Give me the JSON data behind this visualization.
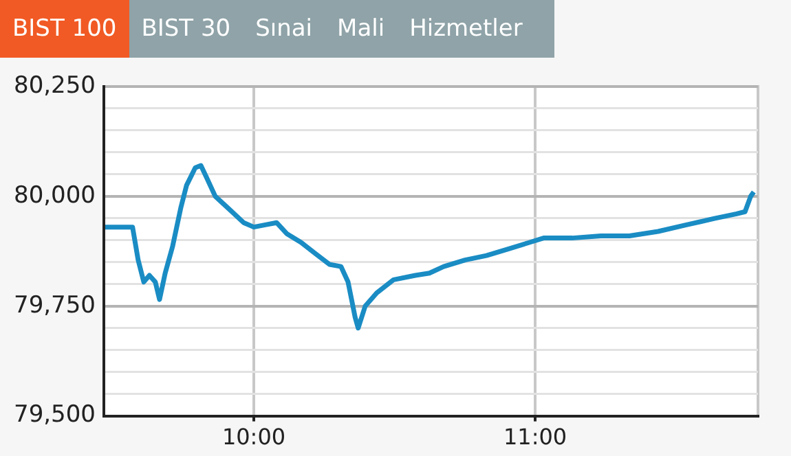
{
  "chart_data": {
    "type": "line",
    "title": "BIST 100",
    "annotations": [
      "BIST 30",
      "Sınai",
      "Mali",
      "Hizmetler"
    ],
    "x": [
      9.472,
      9.569,
      9.589,
      9.609,
      9.629,
      9.65,
      9.665,
      9.685,
      9.711,
      9.741,
      9.761,
      9.792,
      9.812,
      9.827,
      9.863,
      9.914,
      9.964,
      10.0,
      10.041,
      10.081,
      10.117,
      10.168,
      10.218,
      10.269,
      10.31,
      10.335,
      10.36,
      10.371,
      10.396,
      10.437,
      10.497,
      10.574,
      10.624,
      10.675,
      10.751,
      10.827,
      10.904,
      10.98,
      11.03,
      11.132,
      11.234,
      11.335,
      11.437,
      11.538,
      11.64,
      11.716,
      11.746,
      11.766,
      11.777
    ],
    "series": [
      {
        "color": "#1a8cc4",
        "values": [
          79930,
          79930,
          79855,
          79805,
          79820,
          79805,
          79765,
          79825,
          79885,
          79975,
          80025,
          80065,
          80070,
          80050,
          80000,
          79970,
          79940,
          79930,
          79935,
          79940,
          79915,
          79895,
          79870,
          79845,
          79840,
          79805,
          79725,
          79700,
          79750,
          79780,
          79810,
          79820,
          79825,
          79840,
          79855,
          79865,
          79880,
          79895,
          79905,
          79905,
          79910,
          79910,
          79920,
          79935,
          79950,
          79960,
          79965,
          80000,
          80010
        ]
      }
    ],
    "xlim": [
      9.467,
      11.792
    ],
    "xticks": [
      {
        "value": 10,
        "label": "10:00"
      },
      {
        "value": 11,
        "label": "11:00"
      }
    ],
    "ylim": [
      79500,
      80250
    ],
    "yticks": [
      {
        "value": 79500,
        "label": "79,500"
      },
      {
        "value": 79550,
        "label": null
      },
      {
        "value": 79600,
        "label": null
      },
      {
        "value": 79650,
        "label": null
      },
      {
        "value": 79700,
        "label": null
      },
      {
        "value": 79750,
        "label": "79,750"
      },
      {
        "value": 79800,
        "label": null
      },
      {
        "value": 79850,
        "label": null
      },
      {
        "value": 79900,
        "label": null
      },
      {
        "value": 79950,
        "label": null
      },
      {
        "value": 80000,
        "label": "80,000"
      },
      {
        "value": 80050,
        "label": null
      },
      {
        "value": 80100,
        "label": null
      },
      {
        "value": 80150,
        "label": null
      },
      {
        "value": 80200,
        "label": null
      },
      {
        "value": 80250,
        "label": "80,250"
      }
    ],
    "grid": true,
    "legend": false,
    "marker": "none",
    "line_style": "solid"
  }
}
